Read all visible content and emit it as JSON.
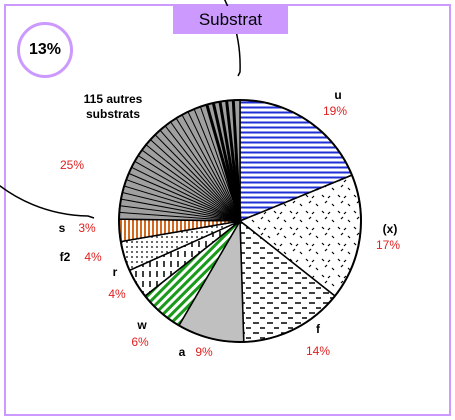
{
  "chart_data": {
    "type": "pie",
    "title": "Substrat",
    "badge": "13%",
    "categories": [
      "u",
      "(x)",
      "f",
      "a",
      "w",
      "r",
      "f2",
      "s",
      "115 autres substrats"
    ],
    "values": [
      19,
      17,
      14,
      9,
      6,
      4,
      4,
      3,
      25
    ],
    "value_labels": [
      "19%",
      "17%",
      "14%",
      "9%",
      "6%",
      "4%",
      "4%",
      "3%",
      "25%"
    ],
    "colors": [
      "#1f2fd6",
      "#000000",
      "#000000",
      "#c0c0c0",
      "#1a9a1a",
      "#000000",
      "#000000",
      "#d2691e",
      "#a0a0a0"
    ]
  }
}
